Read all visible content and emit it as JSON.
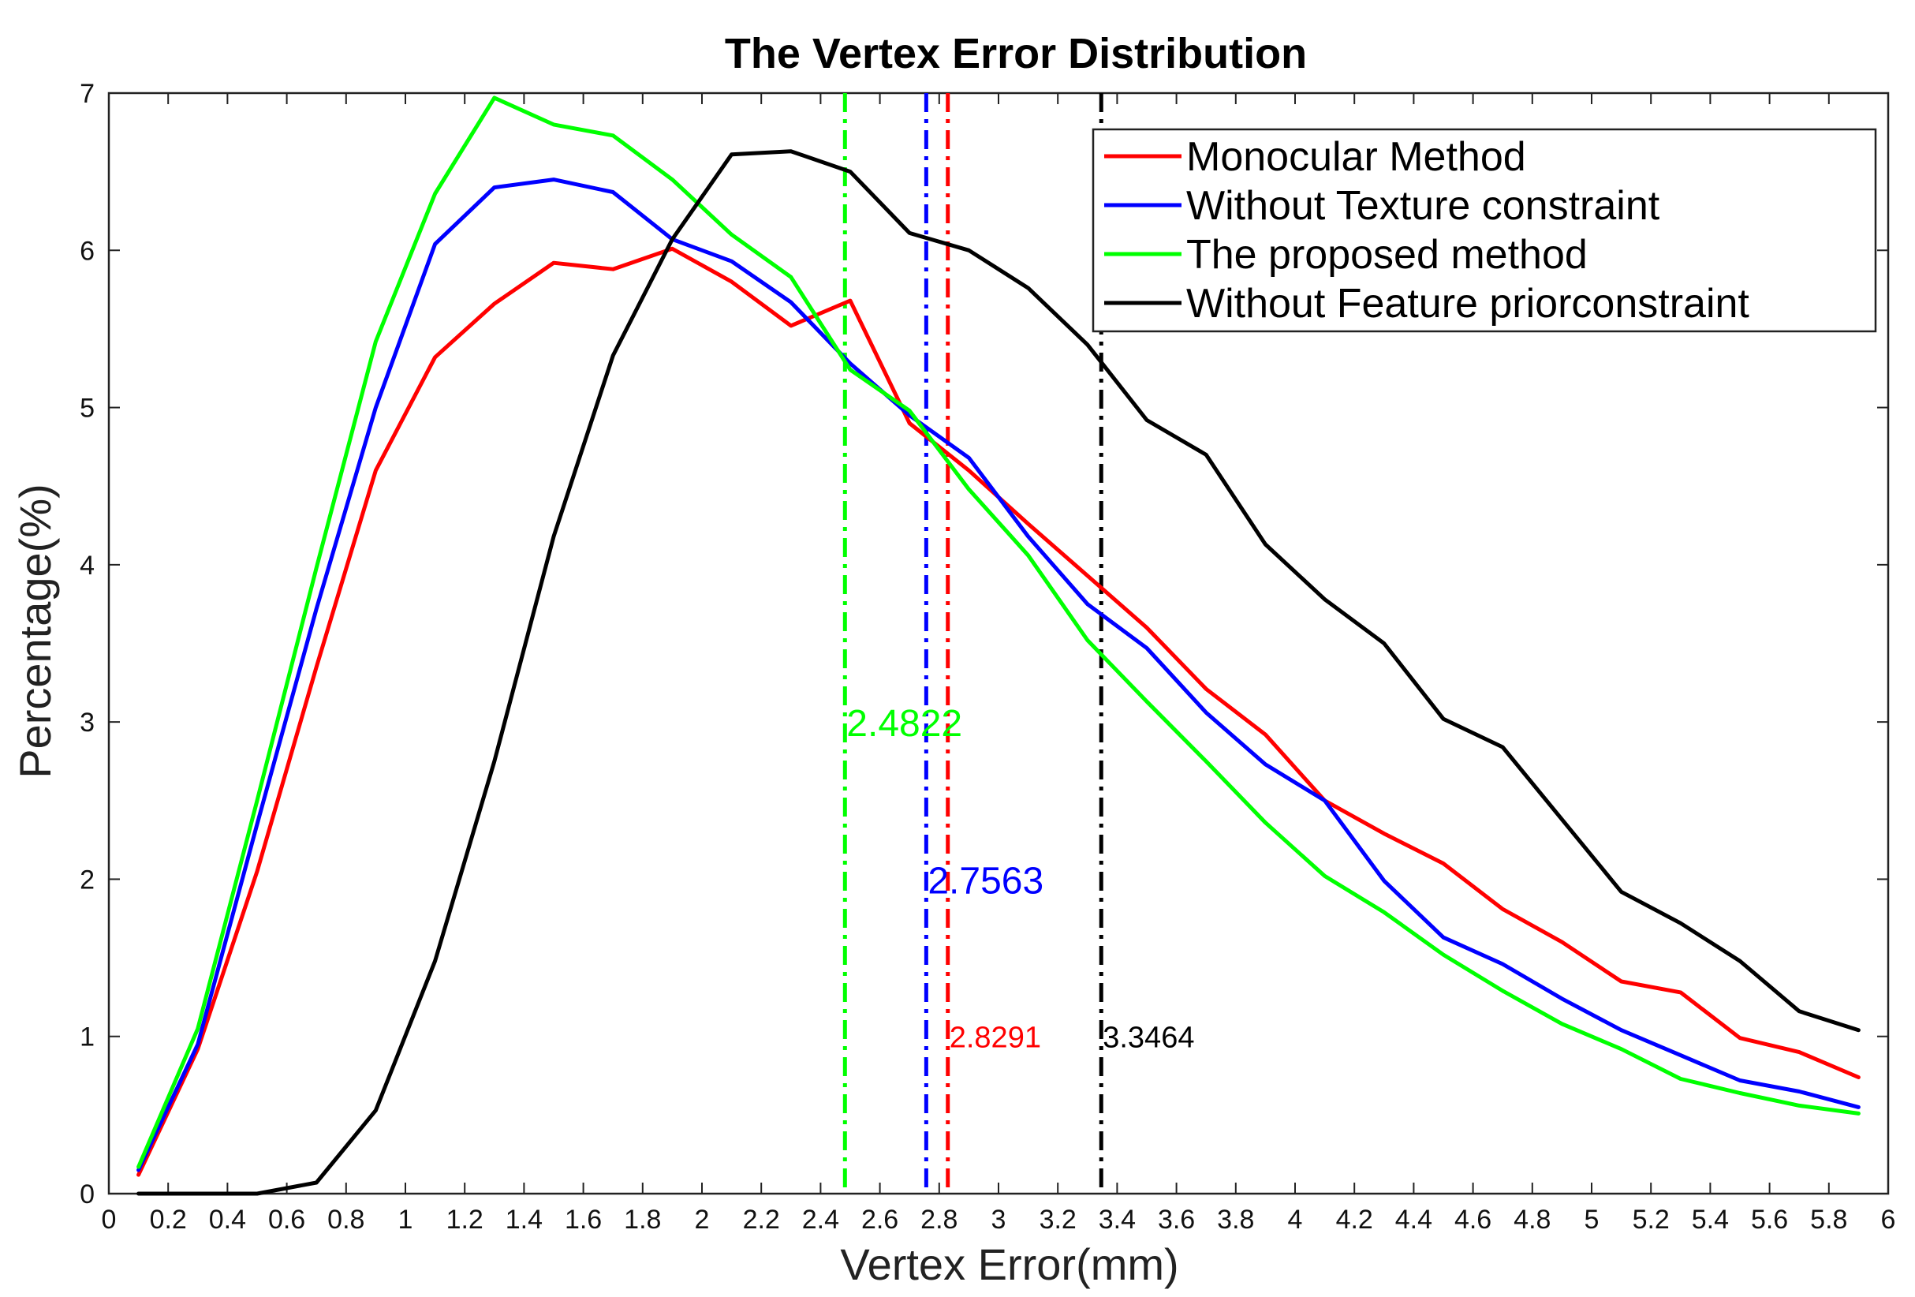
{
  "chart_data": {
    "type": "line",
    "title": "The Vertex Error Distribution",
    "xlabel": "Vertex Error(mm)",
    "ylabel": "Percentage(%)",
    "xlim": [
      0,
      6
    ],
    "ylim": [
      0,
      7
    ],
    "xticks": [
      0,
      0.2,
      0.4,
      0.6,
      0.8,
      1,
      1.2,
      1.4,
      1.6,
      1.8,
      2,
      2.2,
      2.4,
      2.6,
      2.8,
      3,
      3.2,
      3.4,
      3.6,
      3.8,
      4,
      4.2,
      4.4,
      4.6,
      4.8,
      5,
      5.2,
      5.4,
      5.6,
      5.8,
      6
    ],
    "xtick_labels": [
      "0",
      "0.2",
      "0.4",
      "0.6",
      "0.8",
      "1",
      "1.2",
      "1.4",
      "1.6",
      "1.8",
      "2",
      "2.2",
      "2.4",
      "2.6",
      "2.8",
      "3",
      "3.2",
      "3.4",
      "3.6",
      "3.8",
      "4",
      "4.2",
      "4.4",
      "4.6",
      "4.8",
      "5",
      "5.2",
      "5.4",
      "5.6",
      "5.8",
      "6"
    ],
    "yticks": [
      0,
      1,
      2,
      3,
      4,
      5,
      6,
      7
    ],
    "ytick_labels": [
      "0",
      "1",
      "2",
      "3",
      "4",
      "5",
      "6",
      "7"
    ],
    "grid": false,
    "legend_position": "top-right",
    "x": [
      0.1,
      0.3,
      0.5,
      0.7,
      0.9,
      1.1,
      1.3,
      1.5,
      1.7,
      1.9,
      2.1,
      2.3,
      2.5,
      2.7,
      2.9,
      3.1,
      3.3,
      3.5,
      3.7,
      3.9,
      4.1,
      4.3,
      4.5,
      4.7,
      4.9,
      5.1,
      5.3,
      5.5,
      5.7,
      5.9
    ],
    "series": [
      {
        "name": "Monocular Method",
        "color": "#ff0000",
        "values": [
          0.12,
          0.92,
          2.05,
          3.35,
          4.6,
          5.32,
          5.66,
          5.92,
          5.88,
          6.01,
          5.8,
          5.52,
          5.68,
          4.9,
          4.6,
          4.26,
          3.93,
          3.6,
          3.21,
          2.92,
          2.5,
          2.29,
          2.1,
          1.81,
          1.6,
          1.35,
          1.28,
          0.99,
          0.9,
          0.74
        ]
      },
      {
        "name": "Without Texture constraint",
        "color": "#0000ff",
        "values": [
          0.15,
          0.95,
          2.35,
          3.72,
          5.0,
          6.04,
          6.4,
          6.45,
          6.37,
          6.07,
          5.93,
          5.67,
          5.28,
          4.95,
          4.68,
          4.18,
          3.75,
          3.47,
          3.06,
          2.73,
          2.5,
          1.99,
          1.63,
          1.46,
          1.24,
          1.04,
          0.88,
          0.72,
          0.65,
          0.55
        ]
      },
      {
        "name": "The proposed method",
        "color": "#00ff00",
        "values": [
          0.17,
          1.05,
          2.5,
          3.98,
          5.42,
          6.36,
          6.97,
          6.8,
          6.73,
          6.45,
          6.1,
          5.83,
          5.24,
          4.98,
          4.48,
          4.06,
          3.52,
          3.13,
          2.75,
          2.36,
          2.02,
          1.79,
          1.52,
          1.29,
          1.08,
          0.92,
          0.73,
          0.64,
          0.56,
          0.51
        ]
      },
      {
        "name": "Without Feature priorconstraint",
        "color": "#000000",
        "values": [
          0.0,
          0.0,
          0.0,
          0.07,
          0.53,
          1.48,
          2.75,
          4.18,
          5.33,
          6.07,
          6.61,
          6.63,
          6.5,
          6.11,
          6.0,
          5.76,
          5.4,
          4.92,
          4.7,
          4.13,
          3.78,
          3.5,
          3.02,
          2.84,
          2.38,
          1.92,
          1.72,
          1.48,
          1.16,
          1.04
        ]
      }
    ],
    "mean_lines": [
      {
        "x": 2.4822,
        "label": "2.4822",
        "color": "#00ff00",
        "label_y": 3.0
      },
      {
        "x": 2.7563,
        "label": "2.7563",
        "color": "#0000ff",
        "label_y": 2.0
      },
      {
        "x": 2.8291,
        "label": "2.8291",
        "color": "#ff0000",
        "label_y": 1.0
      },
      {
        "x": 3.3464,
        "label": "3.3464",
        "color": "#000000",
        "label_y": 1.0
      }
    ]
  }
}
